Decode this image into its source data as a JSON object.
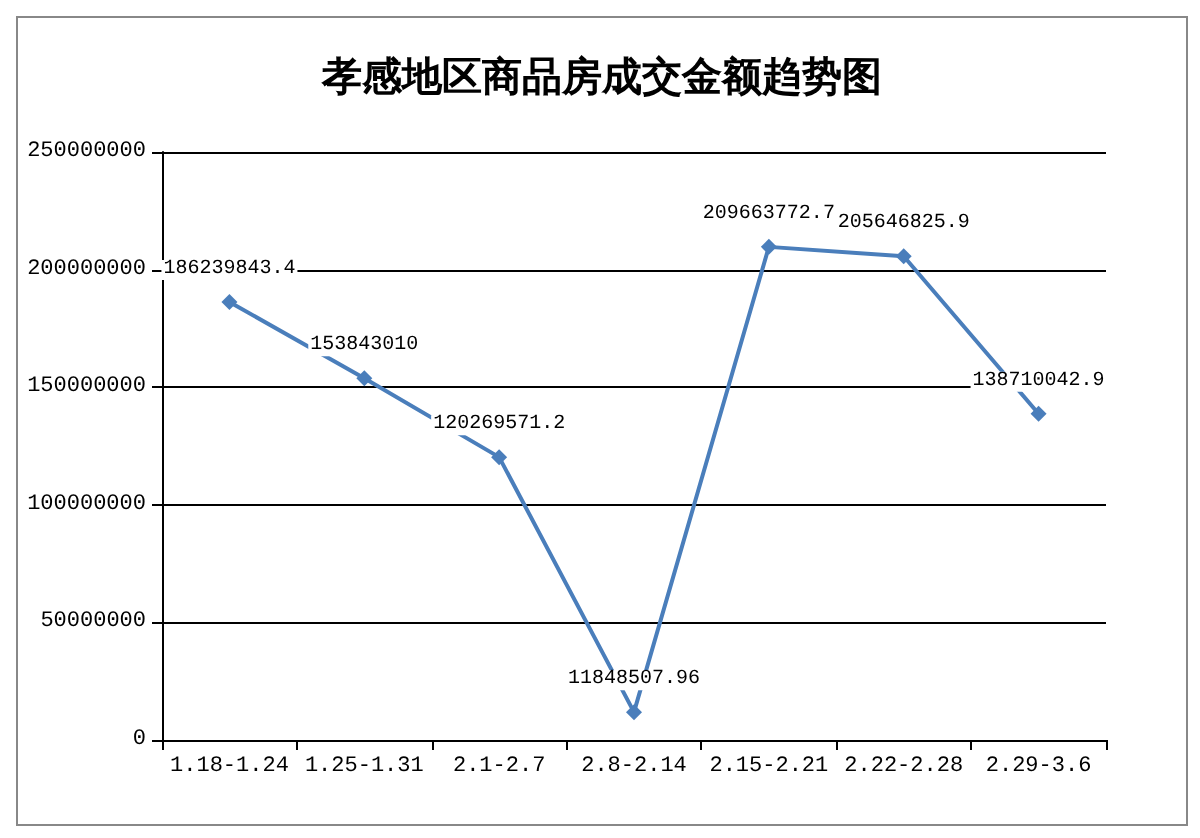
{
  "chart_data": {
    "type": "line",
    "title": "孝感地区商品房成交金额趋势图",
    "categories": [
      "1.18-1.24",
      "1.25-1.31",
      "2.1-2.7",
      "2.8-2.14",
      "2.15-2.21",
      "2.22-2.28",
      "2.29-3.6"
    ],
    "series": [
      {
        "color": "#4a7ebb",
        "values": [
          186239843.4,
          153843010,
          120269571.2,
          11848507.96,
          209663772.7,
          205646825.9,
          138710042.9
        ]
      }
    ],
    "ylim": [
      0,
      250000000
    ],
    "yticks": [
      0,
      50000000,
      100000000,
      150000000,
      200000000,
      250000000
    ],
    "grid": "y",
    "marker": "diamond",
    "line_style": "solid",
    "data_labels": true
  }
}
